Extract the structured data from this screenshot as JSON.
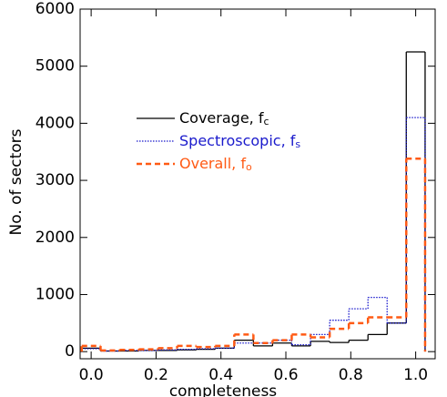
{
  "chart_data": {
    "type": "histogram",
    "xlabel": "completeness",
    "ylabel": "No. of sectors",
    "bins": [
      -0.029,
      0.029,
      0.088,
      0.147,
      0.206,
      0.265,
      0.324,
      0.382,
      0.441,
      0.5,
      0.559,
      0.618,
      0.676,
      0.735,
      0.794,
      0.853,
      0.912,
      0.971,
      1.029
    ],
    "series": [
      {
        "name": "Coverage, f",
        "sub": "c",
        "color": "#000000",
        "dash": "solid",
        "values": [
          60,
          10,
          10,
          20,
          20,
          30,
          40,
          60,
          200,
          100,
          150,
          100,
          180,
          160,
          200,
          300,
          500,
          5250
        ]
      },
      {
        "name": "Spectroscopic, f",
        "sub": "s",
        "color": "#1a1acc",
        "dash": "dotted",
        "values": [
          50,
          10,
          20,
          20,
          30,
          40,
          50,
          60,
          150,
          150,
          200,
          120,
          300,
          550,
          750,
          950,
          500,
          4100
        ]
      },
      {
        "name": "Overall, f",
        "sub": "o",
        "color": "#ff5a14",
        "dash": "dashed",
        "values": [
          100,
          20,
          30,
          40,
          60,
          100,
          80,
          100,
          300,
          150,
          200,
          300,
          250,
          400,
          500,
          600,
          600,
          3380
        ]
      }
    ],
    "xlim": [
      -0.034,
      1.06
    ],
    "ylim": [
      -125,
      6000
    ],
    "xticks": [
      {
        "value": 0,
        "label": "0.0"
      },
      {
        "value": 0.2,
        "label": "0.2"
      },
      {
        "value": 0.4,
        "label": "0.4"
      },
      {
        "value": 0.6,
        "label": "0.6"
      },
      {
        "value": 0.8,
        "label": "0.8"
      },
      {
        "value": 1,
        "label": "1.0"
      }
    ],
    "yticks": [
      0,
      1000,
      2000,
      3000,
      4000,
      5000,
      6000
    ]
  }
}
